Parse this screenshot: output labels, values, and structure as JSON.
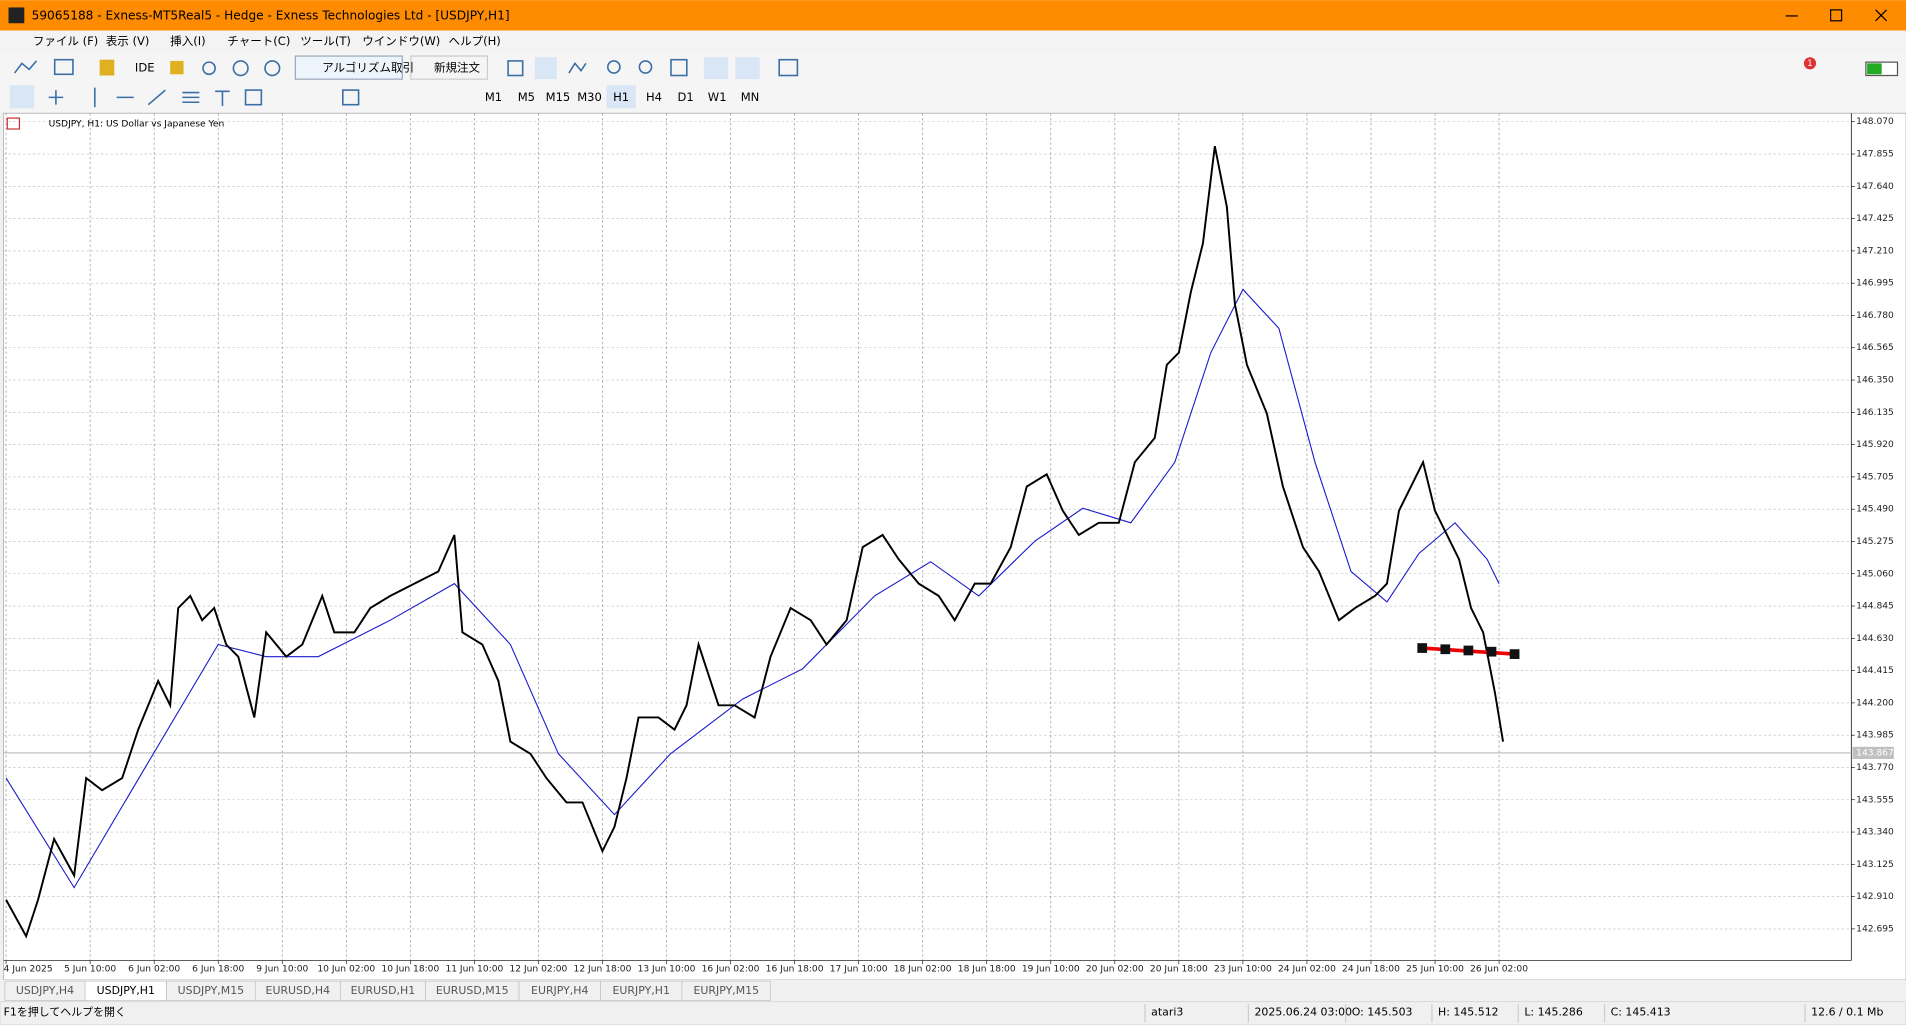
{
  "window": {
    "title": "59065188 - Exness-MT5Real5 - Hedge - Exness Technologies Ltd - [USDJPY,H1]"
  },
  "menu": [
    "ファイル (F)",
    "表示 (V)",
    "挿入(I)",
    "チャート(C)",
    "ツール(T)",
    "ウインドウ(W)",
    "ヘルプ(H)"
  ],
  "toolbar": {
    "ide": "IDE",
    "algo_trading": "アルゴリズム取引",
    "new_order": "新規注文",
    "notifications": 1
  },
  "timeframes": [
    "M1",
    "M5",
    "M15",
    "M30",
    "H1",
    "H4",
    "D1",
    "W1",
    "MN"
  ],
  "active_timeframe": "H1",
  "chart_data": {
    "type": "line",
    "title": "USDJPY, H1:  US Dollar vs Japanese Yen",
    "color": "#000000",
    "grid": true,
    "x": [
      0,
      5,
      8,
      12,
      17,
      20,
      24,
      29,
      33,
      38,
      41,
      43,
      46,
      49,
      52,
      55,
      58,
      62,
      65,
      70,
      74,
      79,
      82,
      87,
      91,
      96,
      102,
      108,
      112,
      114,
      119,
      123,
      126,
      131,
      135,
      140,
      144,
      149,
      152,
      155,
      158,
      163,
      167,
      170,
      173,
      178,
      182,
      187,
      191,
      196,
      201,
      205,
      210,
      214,
      219,
      223,
      228,
      233,
      237,
      242,
      246,
      251,
      255,
      260,
      264,
      268,
      273,
      278,
      282,
      287,
      290,
      293,
      296,
      299,
      302,
      305,
      307,
      310,
      315,
      319,
      324,
      328,
      333,
      337,
      342,
      345,
      348,
      351,
      354,
      357,
      360,
      363,
      366,
      369,
      372,
      374
    ],
    "values": [
      142.889,
      142.646,
      142.889,
      143.294,
      143.051,
      143.699,
      143.618,
      143.699,
      144.022,
      144.346,
      144.184,
      144.832,
      144.913,
      144.751,
      144.832,
      144.589,
      144.508,
      144.103,
      144.67,
      144.508,
      144.589,
      144.913,
      144.67,
      144.67,
      144.832,
      144.913,
      144.994,
      145.075,
      145.318,
      144.67,
      144.589,
      144.346,
      143.942,
      143.861,
      143.699,
      143.537,
      143.537,
      143.213,
      143.375,
      143.699,
      144.103,
      144.103,
      144.022,
      144.184,
      144.589,
      144.184,
      144.184,
      144.103,
      144.508,
      144.832,
      144.751,
      144.589,
      144.751,
      145.237,
      145.318,
      145.156,
      144.994,
      144.913,
      144.751,
      144.994,
      144.994,
      145.237,
      145.641,
      145.722,
      145.48,
      145.318,
      145.399,
      145.399,
      145.803,
      145.965,
      146.451,
      146.532,
      146.937,
      147.26,
      147.908,
      147.503,
      146.856,
      146.451,
      146.127,
      145.641,
      145.237,
      145.075,
      144.751,
      144.832,
      144.913,
      144.994,
      145.48,
      145.641,
      145.803,
      145.48,
      145.318,
      145.156,
      144.832,
      144.67,
      144.265,
      143.942
    ],
    "moving_average": {
      "color": "#1a1acc",
      "x": [
        0,
        17,
        35,
        53,
        65,
        78,
        96,
        112,
        126,
        138,
        152,
        166,
        184,
        199,
        217,
        231,
        243,
        257,
        269,
        281,
        292,
        301,
        309,
        318,
        327,
        336,
        345,
        353,
        362,
        370,
        373
      ],
      "values": [
        143.699,
        142.97,
        143.78,
        144.589,
        144.508,
        144.508,
        144.751,
        144.994,
        144.589,
        143.861,
        143.456,
        143.861,
        144.225,
        144.427,
        144.913,
        145.14,
        144.913,
        145.277,
        145.496,
        145.399,
        145.803,
        146.532,
        146.953,
        146.694,
        145.803,
        145.075,
        144.872,
        145.196,
        145.399,
        145.156,
        144.994
      ]
    },
    "current_price": 143.867,
    "xlim": [
      0,
      461
    ],
    "ylim": [
      142.485,
      148.127
    ],
    "xticks": [
      {
        "value": 0,
        "label": "4 Jun 2025"
      },
      {
        "value": 21,
        "label": "5 Jun 10:00"
      },
      {
        "value": 37,
        "label": "6 Jun 02:00"
      },
      {
        "value": 53,
        "label": "6 Jun 18:00"
      },
      {
        "value": 69,
        "label": "9 Jun 10:00"
      },
      {
        "value": 85,
        "label": "10 Jun 02:00"
      },
      {
        "value": 101,
        "label": "10 Jun 18:00"
      },
      {
        "value": 117,
        "label": "11 Jun 10:00"
      },
      {
        "value": 133,
        "label": "12 Jun 02:00"
      },
      {
        "value": 149,
        "label": "12 Jun 18:00"
      },
      {
        "value": 165,
        "label": "13 Jun 10:00"
      },
      {
        "value": 181,
        "label": "16 Jun 02:00"
      },
      {
        "value": 197,
        "label": "16 Jun 18:00"
      },
      {
        "value": 213,
        "label": "17 Jun 10:00"
      },
      {
        "value": 229,
        "label": "18 Jun 02:00"
      },
      {
        "value": 245,
        "label": "18 Jun 18:00"
      },
      {
        "value": 261,
        "label": "19 Jun 10:00"
      },
      {
        "value": 277,
        "label": "20 Jun 02:00"
      },
      {
        "value": 293,
        "label": "20 Jun 18:00"
      },
      {
        "value": 309,
        "label": "23 Jun 10:00"
      },
      {
        "value": 325,
        "label": "24 Jun 02:00"
      },
      {
        "value": 341,
        "label": "24 Jun 18:00"
      },
      {
        "value": 357,
        "label": "25 Jun 10:00"
      },
      {
        "value": 373,
        "label": "26 Jun 02:00"
      }
    ],
    "yticks": [
      {
        "value": 148.07,
        "label": "148.070"
      },
      147.855,
      {
        "value": 147.64,
        "label": "147.640"
      },
      147.425,
      {
        "value": 147.21,
        "label": "147.210"
      },
      146.995,
      {
        "value": 146.78,
        "label": "146.780"
      },
      146.565,
      {
        "value": 146.35,
        "label": "146.350"
      },
      146.135,
      {
        "value": 145.92,
        "label": "145.920"
      },
      145.705,
      {
        "value": 145.49,
        "label": "145.490"
      },
      145.275,
      {
        "value": 145.06,
        "label": "145.060"
      },
      144.845,
      {
        "value": 144.63,
        "label": "144.630"
      },
      144.415,
      {
        "value": 144.2,
        "label": "144.200"
      },
      143.985,
      {
        "value": 143.77,
        "label": "143.770"
      },
      143.555,
      {
        "value": 143.34,
        "label": "143.340"
      },
      143.125,
      {
        "value": 142.91,
        "label": "142.910"
      },
      142.695
    ]
  },
  "tabs": [
    "USDJPY,H4",
    "USDJPY,H1",
    "USDJPY,M15",
    "EURUSD,H4",
    "EURUSD,H1",
    "EURUSD,M15",
    "EURJPY,H4",
    "EURJPY,H1",
    "EURJPY,M15"
  ],
  "active_tab": "USDJPY,H1",
  "status": [
    "F1を押してヘルプを開く",
    "atari3",
    "2025.06.24 03:00",
    "O: 145.503",
    "H: 145.512",
    "L: 145.286",
    "C: 145.413",
    "12.6 / 0.1 Mb"
  ]
}
